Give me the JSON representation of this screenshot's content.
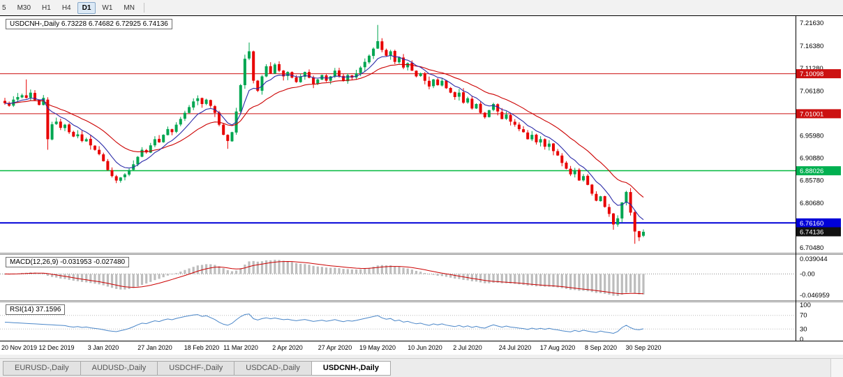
{
  "toolbar": {
    "timeframes": [
      {
        "label": "5",
        "active": false
      },
      {
        "label": "M30",
        "active": false
      },
      {
        "label": "H1",
        "active": false
      },
      {
        "label": "H4",
        "active": false
      },
      {
        "label": "D1",
        "active": true
      },
      {
        "label": "W1",
        "active": false
      },
      {
        "label": "MN",
        "active": false
      }
    ]
  },
  "chart": {
    "symbol_header": "USDCNH-,Daily 6.73228 6.74682 6.72925 6.74136",
    "price_range": {
      "top": 7.2322,
      "bottom": 6.6937
    },
    "price_axis": {
      "ticks": [
        {
          "label": "7.21630",
          "value": 7.2163
        },
        {
          "label": "7.16380",
          "value": 7.1638
        },
        {
          "label": "7.11280",
          "value": 7.1128
        },
        {
          "label": "7.06180",
          "value": 7.0618
        },
        {
          "label": "6.95980",
          "value": 6.9598
        },
        {
          "label": "6.90880",
          "value": 6.9088
        },
        {
          "label": "6.85780",
          "value": 6.8578
        },
        {
          "label": "6.80680",
          "value": 6.8068
        },
        {
          "label": "6.70480",
          "value": 6.7048
        }
      ],
      "badges": [
        {
          "label": "7.10098",
          "value": 7.10098,
          "bg": "#cc1111",
          "type": "resistance"
        },
        {
          "label": "7.01001",
          "value": 7.01001,
          "bg": "#cc1111",
          "type": "resistance"
        },
        {
          "label": "6.88026",
          "value": 6.88026,
          "bg": "#00b050",
          "type": "support"
        },
        {
          "label": "6.76160",
          "value": 6.7616,
          "bg": "#0000d8",
          "type": "support"
        },
        {
          "label": "6.74136",
          "value": 6.74136,
          "bg": "#111111",
          "type": "last-price"
        }
      ]
    },
    "x_axis_labels": [
      {
        "label": "20 Nov 2019",
        "bar": 0
      },
      {
        "label": "12 Dec 2019",
        "bar": 12
      },
      {
        "label": "3 Jan 2020",
        "bar": 23
      },
      {
        "label": "27 Jan 2020",
        "bar": 35
      },
      {
        "label": "18 Feb 2020",
        "bar": 46
      },
      {
        "label": "11 Mar 2020",
        "bar": 55
      },
      {
        "label": "2 Apr 2020",
        "bar": 66
      },
      {
        "label": "27 Apr 2020",
        "bar": 77
      },
      {
        "label": "19 May 2020",
        "bar": 87
      },
      {
        "label": "10 Jun 2020",
        "bar": 98
      },
      {
        "label": "2 Jul 2020",
        "bar": 108
      },
      {
        "label": "24 Jul 2020",
        "bar": 119
      },
      {
        "label": "17 Aug 2020",
        "bar": 129
      },
      {
        "label": "8 Sep 2020",
        "bar": 139
      },
      {
        "label": "30 Sep 2020",
        "bar": 149
      }
    ]
  },
  "indicators": {
    "macd": {
      "header": "MACD(12,26,9) -0.031953 -0.027480",
      "fast": 12,
      "slow": 26,
      "signal": 9,
      "value": -0.031953,
      "signal_value": -0.02748,
      "axis_labels": {
        "max": "0.039044",
        "zero": "-0.00",
        "min": "-0.046959"
      }
    },
    "rsi": {
      "header": "RSI(14) 37.1596",
      "period": 14,
      "value": 37.1596,
      "levels": [
        100,
        70,
        30,
        0
      ]
    }
  },
  "tabs": [
    {
      "label": "EURUSD-,Daily",
      "active": false
    },
    {
      "label": "AUDUSD-,Daily",
      "active": false
    },
    {
      "label": "USDCHF-,Daily",
      "active": false
    },
    {
      "label": "USDCAD-,Daily",
      "active": false
    },
    {
      "label": "USDCNH-,Daily",
      "active": true
    }
  ],
  "colors": {
    "up": "#00a651",
    "down": "#e80000",
    "ma_fast": "#2b2ba8",
    "ma_slow": "#cc0000",
    "macd_hist": "#bdbdbd",
    "macd_signal": "#cc0000",
    "rsi_line": "#4a86c8",
    "border": "#000000"
  },
  "chart_data": {
    "type": "candlestick",
    "symbol": "USDCNH-",
    "timeframe": "Daily",
    "title": "USDCNH-,Daily",
    "last_candle": {
      "open": 6.73228,
      "high": 6.74682,
      "low": 6.72925,
      "close": 6.74136
    },
    "hlines": [
      {
        "label": "7.10098",
        "value": 7.10098,
        "color": "#cc1111",
        "width": 1
      },
      {
        "label": "7.01001",
        "value": 7.01001,
        "color": "#cc1111",
        "width": 1
      },
      {
        "label": "6.88026",
        "value": 6.88026,
        "color": "#00b83c",
        "width": 1.5
      },
      {
        "label": "6.76160",
        "value": 6.7616,
        "color": "#0000d8",
        "width": 2
      }
    ],
    "closes": [
      7.034,
      7.028,
      7.042,
      7.048,
      7.052,
      7.046,
      7.058,
      7.041,
      7.03,
      7.046,
      6.952,
      6.986,
      6.992,
      6.978,
      6.985,
      6.968,
      6.958,
      6.963,
      6.948,
      6.952,
      6.938,
      6.928,
      6.918,
      6.902,
      6.882,
      6.868,
      6.858,
      6.865,
      6.872,
      6.882,
      6.895,
      6.912,
      6.928,
      6.922,
      6.938,
      6.952,
      6.945,
      6.962,
      6.975,
      6.968,
      6.985,
      6.998,
      7.012,
      7.025,
      7.038,
      7.045,
      7.032,
      7.042,
      7.028,
      7.012,
      6.985,
      6.962,
      6.948,
      6.968,
      7.015,
      7.075,
      7.135,
      7.152,
      7.085,
      7.062,
      7.095,
      7.118,
      7.102,
      7.122,
      7.108,
      7.095,
      7.105,
      7.092,
      7.082,
      7.095,
      7.105,
      7.092,
      7.078,
      7.088,
      7.098,
      7.085,
      7.095,
      7.108,
      7.095,
      7.085,
      7.098,
      7.092,
      7.102,
      7.115,
      7.128,
      7.142,
      7.158,
      7.175,
      7.155,
      7.142,
      7.152,
      7.128,
      7.138,
      7.115,
      7.125,
      7.108,
      7.095,
      7.102,
      7.085,
      7.072,
      7.088,
      7.075,
      7.085,
      7.068,
      7.058,
      7.048,
      7.058,
      7.035,
      7.045,
      7.022,
      7.032,
      7.012,
      7.002,
      7.018,
      7.032,
      7.015,
      6.998,
      7.008,
      6.992,
      6.985,
      6.975,
      6.968,
      6.952,
      6.962,
      6.945,
      6.952,
      6.935,
      6.942,
      6.925,
      6.915,
      6.898,
      6.885,
      6.872,
      6.882,
      6.858,
      6.868,
      6.848,
      6.828,
      6.812,
      6.822,
      6.798,
      6.782,
      6.758,
      6.772,
      6.808,
      6.832,
      6.785,
      6.742,
      6.729,
      6.74136
    ],
    "specials": {
      "5": {
        "h": 7.088
      },
      "10": {
        "o": 7.042,
        "l": 6.928
      },
      "26": {
        "l": 6.852
      },
      "52": {
        "l": 6.93
      },
      "57": {
        "h": 7.172
      },
      "87": {
        "h": 7.212
      },
      "142": {
        "l": 6.746
      },
      "147": {
        "l": 6.714
      },
      "149": {
        "o": 6.73228,
        "h": 6.74682,
        "l": 6.72925
      }
    }
  }
}
